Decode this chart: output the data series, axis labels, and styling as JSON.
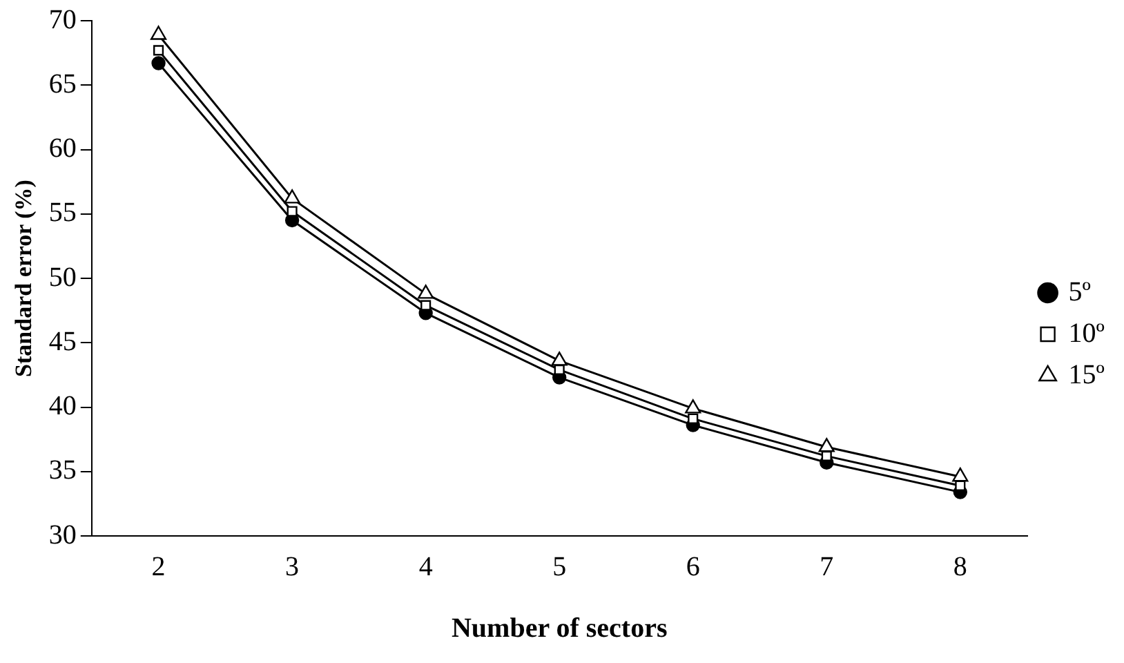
{
  "chart_data": {
    "type": "line",
    "xlabel": "Number of sectors",
    "ylabel": "Standard error (%)",
    "categories": [
      "2",
      "3",
      "4",
      "5",
      "6",
      "7",
      "8"
    ],
    "ylim": [
      30,
      70
    ],
    "yticks": [
      30,
      35,
      40,
      45,
      50,
      55,
      60,
      65,
      70
    ],
    "grid": false,
    "legend": "right",
    "line_style": "solid",
    "series": [
      {
        "name": "5º",
        "color": "#000000",
        "marker": "circle",
        "values": [
          66.7,
          54.5,
          47.3,
          42.3,
          38.6,
          35.7,
          33.4
        ]
      },
      {
        "name": "10º",
        "color": "#000000",
        "marker": "square",
        "values": [
          67.7,
          55.2,
          47.9,
          42.9,
          39.1,
          36.2,
          33.9
        ]
      },
      {
        "name": "15º",
        "color": "#000000",
        "marker": "triangle",
        "values": [
          68.9,
          56.2,
          48.8,
          43.6,
          39.9,
          36.9,
          34.6
        ]
      }
    ]
  }
}
